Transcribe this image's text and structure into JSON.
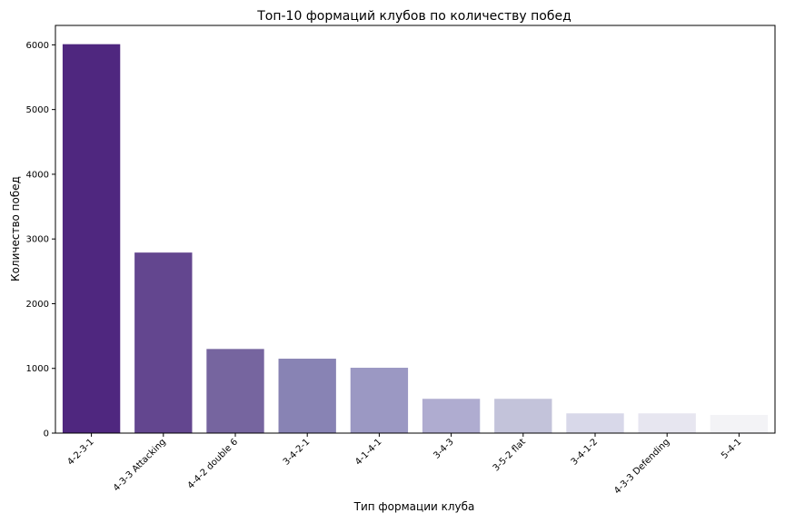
{
  "chart_data": {
    "type": "bar",
    "title": "Топ-10 формаций клубов по количеству побед",
    "xlabel": "Тип формации клуба",
    "ylabel": "Количество побед",
    "categories": [
      "4-2-3-1",
      "4-3-3 Attacking",
      "4-4-2 double 6",
      "3-4-2-1",
      "4-1-4-1",
      "3-4-3",
      "3-5-2 flat",
      "3-4-1-2",
      "4-3-3 Defending",
      "5-4-1"
    ],
    "values": [
      6010,
      2790,
      1300,
      1150,
      1010,
      530,
      530,
      305,
      305,
      280
    ],
    "ylim": [
      0,
      6300
    ],
    "yticks": [
      0,
      1000,
      2000,
      3000,
      4000,
      5000,
      6000
    ],
    "grid": false,
    "colors": [
      "#4f277f",
      "#63468f",
      "#76659f",
      "#8883b4",
      "#9b98c3",
      "#afacd0",
      "#c3c3da",
      "#d8d8e9",
      "#e7e6f0",
      "#f3f3f6"
    ]
  }
}
